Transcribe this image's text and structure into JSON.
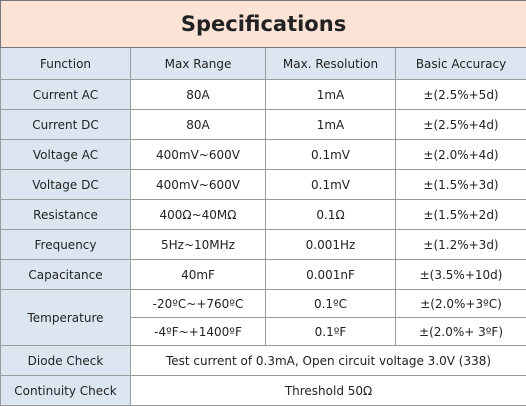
{
  "title": "Specifications",
  "table": {
    "header": [
      "Function",
      "Max Range",
      "Max. Resolution",
      "Basic Accuracy"
    ],
    "rows": [
      [
        "Current AC",
        "80A",
        "1mA",
        "±(2.5%+5d)"
      ],
      [
        "Current DC",
        "80A",
        "1mA",
        "±(2.5%+4d)"
      ],
      [
        "Voltage AC",
        "400mV~600V",
        "0.1mV",
        "±(2.0%+4d)"
      ],
      [
        "Voltage DC",
        "400mV~600V",
        "0.1mV",
        "±(1.5%+3d)"
      ],
      [
        "Resistance",
        "400Ω~40MΩ",
        "0.1Ω",
        "±(1.5%+2d)"
      ],
      [
        "Frequency",
        "5Hz~10MHz",
        "0.001Hz",
        "±(1.2%+3d)"
      ],
      [
        "Capacitance",
        "40mF",
        "0.001nF",
        "±(3.5%+10d)"
      ],
      [
        "Temperature",
        "-20ºC~+760ºC",
        "0.1ºC",
        "±(2.0%+3ºC)"
      ],
      [
        "-4ºF~+1400ºF",
        "0.1ºF",
        "±(2.0%+ 3ºF)"
      ],
      [
        "Diode Check",
        "Test current of 0.3mA, Open circuit voltage 3.0V (338)"
      ],
      [
        "Continuity Check",
        "Threshold 50Ω"
      ]
    ]
  }
}
